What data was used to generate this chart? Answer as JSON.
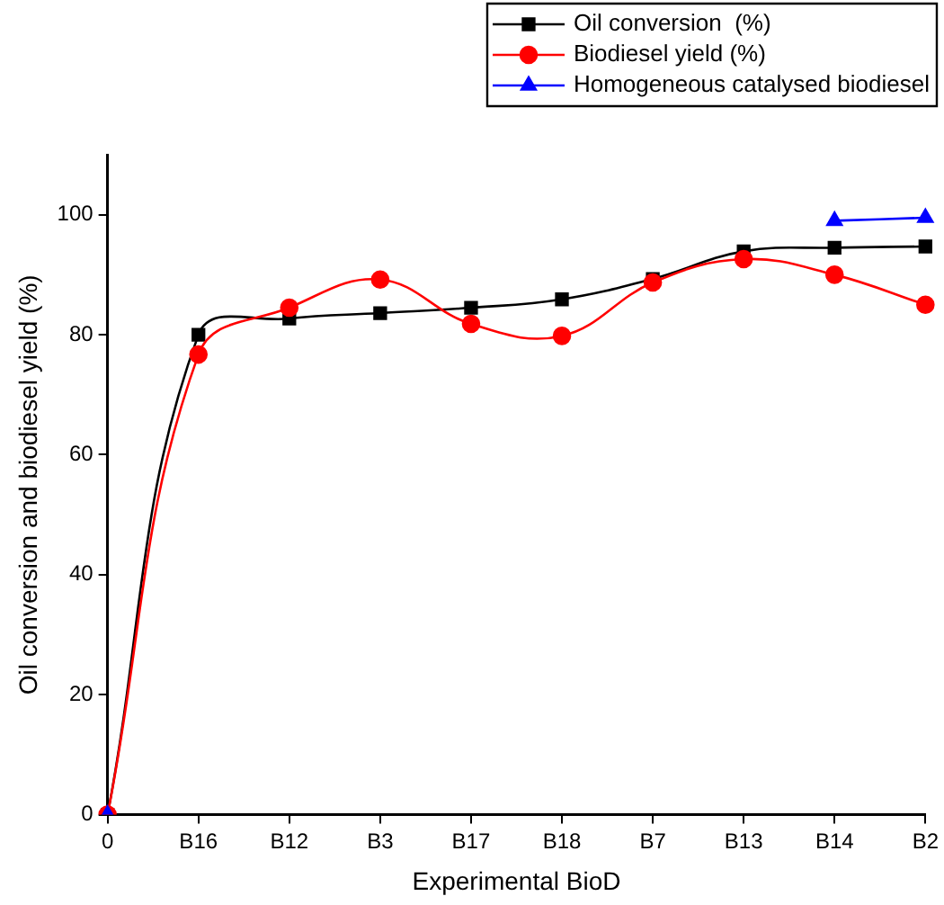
{
  "chart_data": {
    "type": "line",
    "xlabel": "Experimental BioD",
    "ylabel": "Oil conversion and biodiesel yield (%)",
    "categories": [
      "0",
      "B16",
      "B12",
      "B3",
      "B17",
      "B18",
      "B7",
      "B13",
      "B14",
      "B2"
    ],
    "series": [
      {
        "name": "Oil conversion  (%)",
        "color": "#000000",
        "marker": "square",
        "values": [
          0,
          80,
          82.7,
          83.6,
          84.5,
          85.9,
          89.3,
          93.9,
          94.5,
          94.7
        ]
      },
      {
        "name": "Biodiesel yield (%)",
        "color": "#ff0000",
        "marker": "circle",
        "values": [
          0,
          76.7,
          84.5,
          89.2,
          81.8,
          79.8,
          88.7,
          92.6,
          90,
          85
        ]
      },
      {
        "name": "Homogeneous catalysed biodiesel",
        "color": "#0000ff",
        "marker": "triangle",
        "values": [
          0,
          null,
          null,
          null,
          null,
          null,
          null,
          null,
          99,
          99.5
        ]
      }
    ],
    "ylim": [
      0,
      110
    ],
    "yticks": [
      0,
      20,
      40,
      60,
      80,
      100
    ],
    "grid": false,
    "legend": "top right",
    "line_style": "solid"
  }
}
